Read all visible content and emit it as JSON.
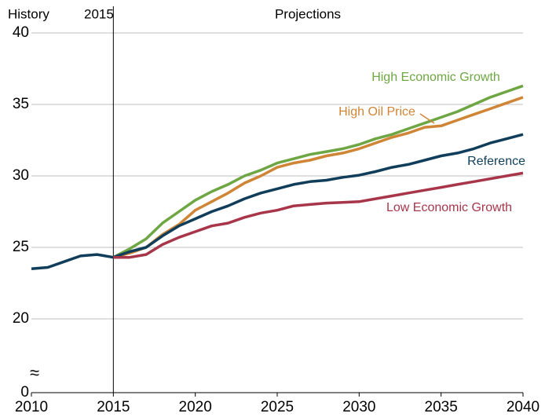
{
  "chart_data": {
    "type": "line",
    "annotations": {
      "history": "History",
      "year": "2015",
      "projections": "Projections"
    },
    "xlim": [
      2010,
      2040
    ],
    "xticks": [
      2010,
      2015,
      2020,
      2025,
      2030,
      2035,
      2040
    ],
    "ylim": [
      0,
      40
    ],
    "yticks": [
      0,
      20,
      25,
      30,
      35,
      40
    ],
    "axis_break": [
      0,
      20
    ],
    "grid": true,
    "divider_x": 2015,
    "series": [
      {
        "name": "High Economic Growth",
        "color": "#6ea644",
        "x": [
          2015,
          2016,
          2017,
          2018,
          2019,
          2020,
          2021,
          2022,
          2023,
          2024,
          2025,
          2026,
          2027,
          2028,
          2029,
          2030,
          2031,
          2032,
          2033,
          2034,
          2035,
          2036,
          2037,
          2038,
          2039,
          2040
        ],
        "values": [
          24.3,
          24.9,
          25.6,
          26.7,
          27.5,
          28.3,
          28.9,
          29.4,
          30.0,
          30.4,
          30.9,
          31.2,
          31.5,
          31.7,
          31.9,
          32.2,
          32.6,
          32.9,
          33.3,
          33.7,
          34.1,
          34.5,
          35.0,
          35.5,
          35.9,
          36.3
        ]
      },
      {
        "name": "High Oil Price",
        "color": "#cf8535",
        "x": [
          2015,
          2016,
          2017,
          2018,
          2019,
          2020,
          2021,
          2022,
          2023,
          2024,
          2025,
          2026,
          2027,
          2028,
          2029,
          2030,
          2031,
          2032,
          2033,
          2034,
          2035,
          2036,
          2037,
          2038,
          2039,
          2040
        ],
        "values": [
          24.3,
          24.6,
          25.0,
          25.9,
          26.6,
          27.6,
          28.2,
          28.8,
          29.5,
          30.0,
          30.6,
          30.9,
          31.1,
          31.4,
          31.6,
          31.9,
          32.3,
          32.7,
          33.0,
          33.4,
          33.5,
          33.9,
          34.3,
          34.7,
          35.1,
          35.5
        ]
      },
      {
        "name": "Reference",
        "color": "#0f3d5a",
        "x": [
          2010,
          2011,
          2012,
          2013,
          2014,
          2015,
          2016,
          2017,
          2018,
          2019,
          2020,
          2021,
          2022,
          2023,
          2024,
          2025,
          2026,
          2027,
          2028,
          2029,
          2030,
          2031,
          2032,
          2033,
          2034,
          2035,
          2036,
          2037,
          2038,
          2039,
          2040
        ],
        "values": [
          23.5,
          23.6,
          24.0,
          24.4,
          24.5,
          24.3,
          24.7,
          25.0,
          25.8,
          26.5,
          27.0,
          27.5,
          27.9,
          28.4,
          28.8,
          29.1,
          29.4,
          29.6,
          29.7,
          29.9,
          30.05,
          30.3,
          30.6,
          30.8,
          31.1,
          31.4,
          31.6,
          31.9,
          32.3,
          32.6,
          32.9
        ]
      },
      {
        "name": "Low Economic Growth",
        "color": "#a8364a",
        "x": [
          2015,
          2016,
          2017,
          2018,
          2019,
          2020,
          2021,
          2022,
          2023,
          2024,
          2025,
          2026,
          2027,
          2028,
          2029,
          2030,
          2031,
          2032,
          2033,
          2034,
          2035,
          2036,
          2037,
          2038,
          2039,
          2040
        ],
        "values": [
          24.3,
          24.3,
          24.5,
          25.2,
          25.7,
          26.1,
          26.5,
          26.7,
          27.1,
          27.4,
          27.6,
          27.9,
          28.0,
          28.1,
          28.15,
          28.2,
          28.4,
          28.6,
          28.8,
          29.0,
          29.2,
          29.4,
          29.6,
          29.8,
          30.0,
          30.2
        ]
      }
    ]
  }
}
